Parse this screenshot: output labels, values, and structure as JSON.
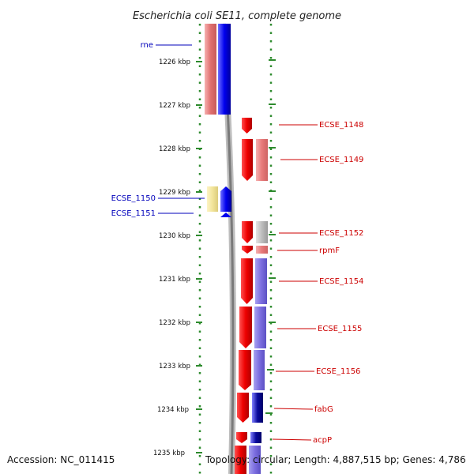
{
  "title": "Escherichia coli SE11, complete genome",
  "accession": "Accession: NC_011415",
  "topology": "Topology: circular; Length: 4,887,515 bp; Genes: 4,786",
  "ticks": [
    "1226 kbp",
    "1227 kbp",
    "1228 kbp",
    "1229 kbp",
    "1230 kbp",
    "1231 kbp",
    "1232 kbp",
    "1233 kbp",
    "1234 kbp",
    "1235 kbp"
  ],
  "colors": {
    "forward_label": "#0000bb",
    "reverse_label": "#cc0000",
    "backbone": "#888888",
    "scale_dots": "#2e8b2e"
  },
  "genes": [
    {
      "label": "rne",
      "strand": "forward",
      "color": "#0000ee"
    },
    {
      "label": "ECSE_1148",
      "strand": "reverse",
      "color": "#ee0000"
    },
    {
      "label": "ECSE_1149",
      "strand": "reverse",
      "color": "#ee0000"
    },
    {
      "label": "ECSE_1150",
      "strand": "forward",
      "color": "#f2e49a"
    },
    {
      "label": "ECSE_1151",
      "strand": "forward",
      "color": "#0000ee"
    },
    {
      "label": "ECSE_1152",
      "strand": "reverse",
      "color": "#ee0000"
    },
    {
      "label": "rpmF",
      "strand": "reverse",
      "color": "#ee0000"
    },
    {
      "label": "ECSE_1154",
      "strand": "reverse",
      "color": "#ee0000"
    },
    {
      "label": "ECSE_1155",
      "strand": "reverse",
      "color": "#ee0000"
    },
    {
      "label": "ECSE_1156",
      "strand": "reverse",
      "color": "#ee0000"
    },
    {
      "label": "fabG",
      "strand": "reverse",
      "color": "#ee0000"
    },
    {
      "label": "acpP",
      "strand": "reverse",
      "color": "#ee0000"
    }
  ]
}
